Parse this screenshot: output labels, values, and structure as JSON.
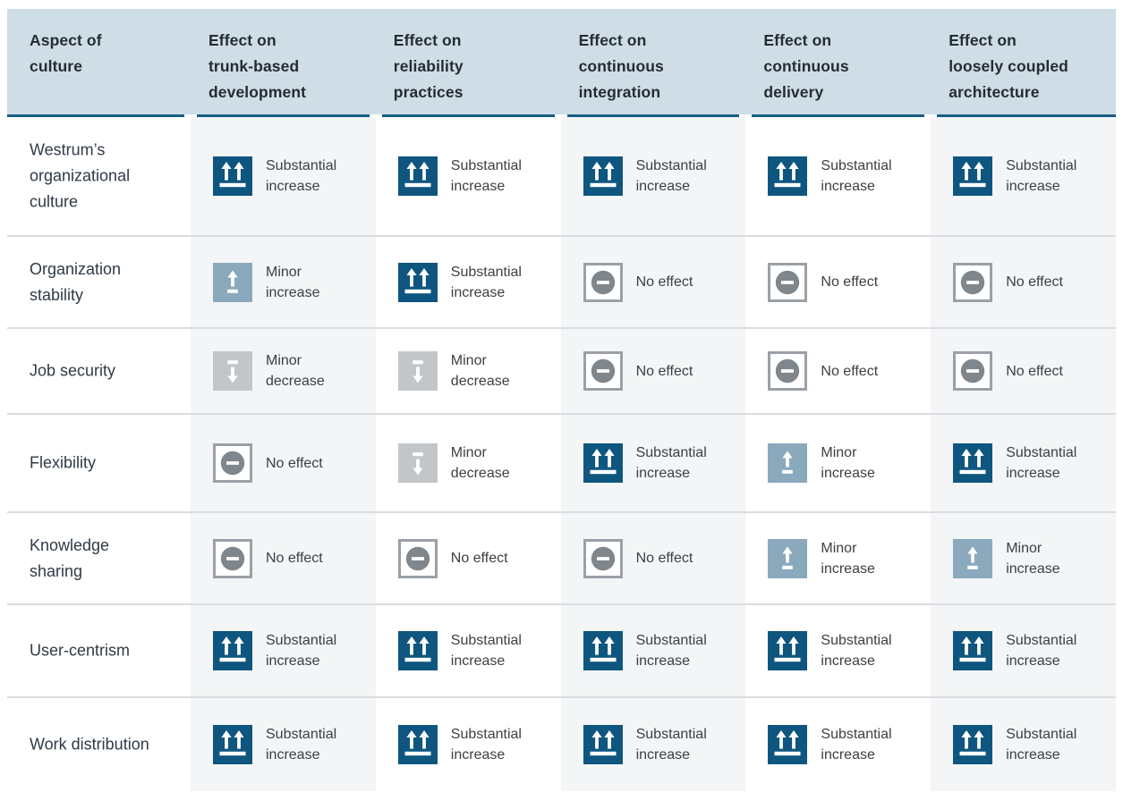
{
  "header": {
    "columns": [
      {
        "label": "Aspect of culture",
        "lines": [
          "Aspect of",
          "culture"
        ]
      },
      {
        "label": "Effect on trunk-based development",
        "lines": [
          "Effect on",
          "trunk-based",
          "development"
        ]
      },
      {
        "label": "Effect on reliability practices",
        "lines": [
          "Effect on",
          "reliability",
          "practices"
        ]
      },
      {
        "label": "Effect on continuous integration",
        "lines": [
          "Effect on",
          "continuous",
          "integration"
        ]
      },
      {
        "label": "Effect on continuous delivery",
        "lines": [
          "Effect on",
          "continuous",
          "delivery"
        ]
      },
      {
        "label": "Effect on loosely coupled architecture",
        "lines": [
          "Effect on",
          "loosely coupled",
          "architecture"
        ]
      }
    ]
  },
  "effects": {
    "substantial_increase": {
      "label": "Substantial increase",
      "lines": [
        "Substantial",
        "increase"
      ],
      "icon": "substantial-increase-icon",
      "color": "#0e567f"
    },
    "minor_increase": {
      "label": "Minor increase",
      "lines": [
        "Minor",
        "increase"
      ],
      "icon": "minor-increase-icon",
      "color": "#8aa9bd"
    },
    "minor_decrease": {
      "label": "Minor decrease",
      "lines": [
        "Minor",
        "decrease"
      ],
      "icon": "minor-decrease-icon",
      "color": "#c3c6c9"
    },
    "no_effect": {
      "label": "No effect",
      "lines": [
        "No effect"
      ],
      "icon": "no-effect-icon",
      "color": "#7f868c"
    }
  },
  "rows": [
    {
      "label": "Westrum’s organizational culture",
      "label_lines": [
        "Westrum’s",
        "organizational",
        "culture"
      ],
      "values": [
        "substantial_increase",
        "substantial_increase",
        "substantial_increase",
        "substantial_increase",
        "substantial_increase"
      ]
    },
    {
      "label": "Organization stability",
      "label_lines": [
        "Organization",
        "stability"
      ],
      "values": [
        "minor_increase",
        "substantial_increase",
        "no_effect",
        "no_effect",
        "no_effect"
      ]
    },
    {
      "label": "Job security",
      "label_lines": [
        "Job security"
      ],
      "values": [
        "minor_decrease",
        "minor_decrease",
        "no_effect",
        "no_effect",
        "no_effect"
      ]
    },
    {
      "label": "Flexibility",
      "label_lines": [
        "Flexibility"
      ],
      "values": [
        "no_effect",
        "minor_decrease",
        "substantial_increase",
        "minor_increase",
        "substantial_increase"
      ]
    },
    {
      "label": "Knowledge sharing",
      "label_lines": [
        "Knowledge",
        "sharing"
      ],
      "values": [
        "no_effect",
        "no_effect",
        "no_effect",
        "minor_increase",
        "minor_increase"
      ]
    },
    {
      "label": "User-centrism",
      "label_lines": [
        "User-centrism"
      ],
      "values": [
        "substantial_increase",
        "substantial_increase",
        "substantial_increase",
        "substantial_increase",
        "substantial_increase"
      ]
    },
    {
      "label": "Work distribution",
      "label_lines": [
        "Work distribution"
      ],
      "values": [
        "substantial_increase",
        "substantial_increase",
        "substantial_increase",
        "substantial_increase",
        "substantial_increase"
      ]
    }
  ],
  "colors": {
    "header_bg": "#cedde6",
    "header_border": "#175d82",
    "header_text": "#262c33",
    "row_label_text": "#2f3a45",
    "cell_text": "#3c4043",
    "row_divider": "#dadce0",
    "shaded_column_bg": "#f3f5f6",
    "substantial_increase": "#0e567f",
    "minor_increase": "#8aa9bd",
    "minor_decrease": "#c3c6c9",
    "no_effect_circle": "#7f868c",
    "no_effect_border": "#9aa0a6"
  }
}
